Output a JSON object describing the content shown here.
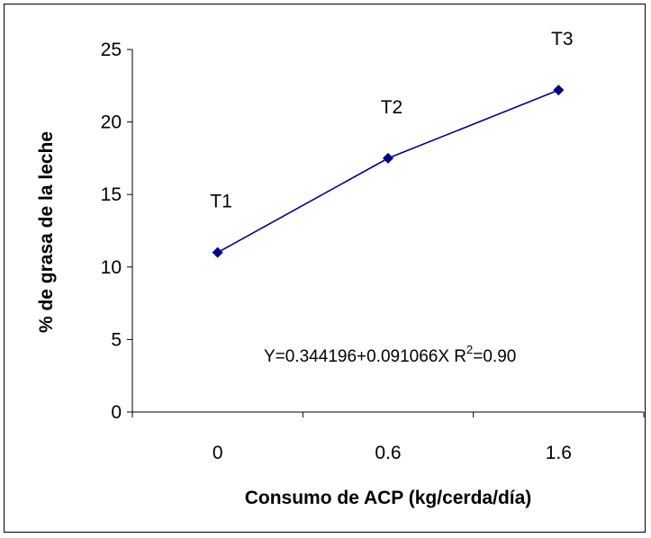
{
  "chart_data": {
    "type": "line",
    "x": [
      "0",
      "0.6",
      "1.6"
    ],
    "values": [
      11,
      17.5,
      22.2
    ],
    "point_labels": [
      "T1",
      "T2",
      "T3"
    ],
    "xlabel": "Consumo de ACP (kg/cerda/día)",
    "ylabel": "% de grasa de la leche",
    "ylim": [
      0,
      25
    ],
    "yticks": [
      "0",
      "5",
      "10",
      "15",
      "20",
      "25"
    ],
    "grid": false,
    "series_color": "#00008B",
    "annotation": {
      "equation": "Y=0.344196+0.091066X  R",
      "r_sup": "2",
      "r_value": "=0.90"
    }
  }
}
